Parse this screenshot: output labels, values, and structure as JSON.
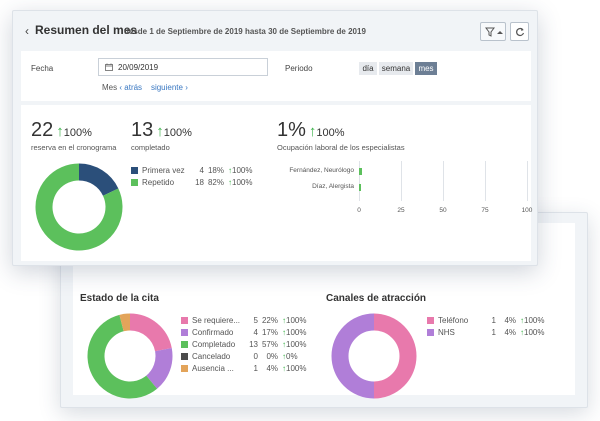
{
  "colors": {
    "blue": "#2b4f7a",
    "green": "#5cc05c",
    "pink": "#e879ac",
    "purple": "#b07ed8",
    "dark": "#4c4c4c",
    "orange": "#e3a45a",
    "up": "#3cb34a",
    "active_seg": "#6d7f95",
    "link": "#3a78c2"
  },
  "header": {
    "title": "Resumen del mes",
    "subtitle": "desde 1 de Septiembre de 2019 hasta 30 de Septiembre de 2019",
    "icons": [
      "chevron-left-icon",
      "filter-icon",
      "caret-up-icon",
      "refresh-icon"
    ]
  },
  "filters": {
    "fecha_label": "Fecha",
    "fecha_value": "20/09/2019",
    "periodo_label": "Periodo",
    "periodo_options": [
      "día",
      "semana",
      "mes"
    ],
    "periodo_selected": "mes",
    "mes_label": "Mes",
    "atras": "atrás",
    "siguiente": "siguiente"
  },
  "metrics": {
    "reservas": {
      "value": "22",
      "pct": "100%",
      "label": "reserva en el cronograma"
    },
    "completado": {
      "value": "13",
      "pct": "100%",
      "label": "completado"
    },
    "ocupacion": {
      "value": "1%",
      "pct": "100%",
      "label": "Ocupación laboral de los especialistas"
    }
  },
  "reservas_legend": [
    {
      "name": "Primera vez",
      "count": "4",
      "pct": "18%",
      "change": "100%",
      "color": "#2b4f7a",
      "fraction": 0.18
    },
    {
      "name": "Repetido",
      "count": "18",
      "pct": "82%",
      "change": "100%",
      "color": "#5cc05c",
      "fraction": 0.82
    }
  ],
  "chart_data": {
    "type": "bar",
    "orientation": "horizontal",
    "categories": [
      "Fernández, Neurólogo",
      "Díaz, Alergista"
    ],
    "values": [
      2,
      1
    ],
    "xlim": [
      0,
      100
    ],
    "xticks": [
      "0",
      "25",
      "50",
      "75",
      "100"
    ]
  },
  "estado": {
    "title": "Estado de la cita",
    "items": [
      {
        "name": "Se requiere...",
        "count": "5",
        "pct": "22%",
        "change": "100%",
        "color": "#e879ac",
        "fraction": 0.22
      },
      {
        "name": "Confirmado",
        "count": "4",
        "pct": "17%",
        "change": "100%",
        "color": "#b07ed8",
        "fraction": 0.17
      },
      {
        "name": "Completado",
        "count": "13",
        "pct": "57%",
        "change": "100%",
        "color": "#5cc05c",
        "fraction": 0.57
      },
      {
        "name": "Cancelado",
        "count": "0",
        "pct": "0%",
        "change": "0%",
        "color": "#4c4c4c",
        "fraction": 0
      },
      {
        "name": "Ausencia ...",
        "count": "1",
        "pct": "4%",
        "change": "100%",
        "color": "#e3a45a",
        "fraction": 0.04
      }
    ]
  },
  "canales": {
    "title": "Canales de atracción",
    "items": [
      {
        "name": "Teléfono",
        "count": "1",
        "pct": "4%",
        "change": "100%",
        "color": "#e879ac",
        "fraction": 0.5
      },
      {
        "name": "NHS",
        "count": "1",
        "pct": "4%",
        "change": "100%",
        "color": "#b07ed8",
        "fraction": 0.5
      }
    ]
  }
}
